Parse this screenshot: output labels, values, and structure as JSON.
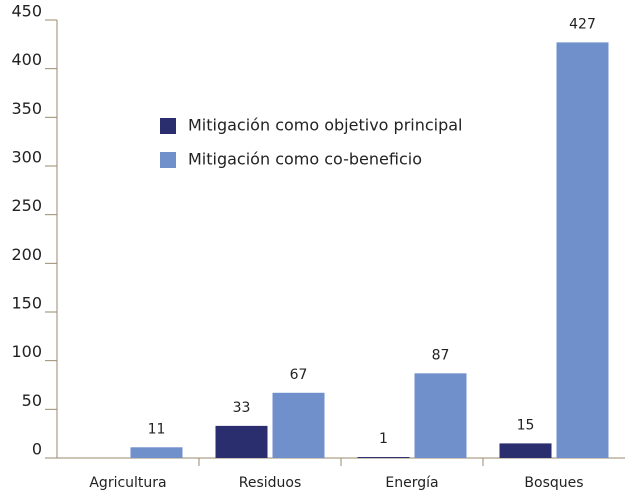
{
  "chart_data": {
    "type": "bar",
    "categories": [
      "Agricultura",
      "Residuos",
      "Energía",
      "Bosques"
    ],
    "series": [
      {
        "name": "Mitigación como objetivo principal",
        "color": "#2a2d6e",
        "values": [
          null,
          33,
          1,
          15
        ]
      },
      {
        "name": "Mitigación como co-beneficio",
        "color": "#7090cc",
        "values": [
          11,
          67,
          87,
          427
        ]
      }
    ],
    "ylim": [
      0,
      450
    ],
    "yticks": [
      0,
      50,
      100,
      150,
      200,
      250,
      300,
      350,
      400,
      450
    ],
    "grid": false,
    "legend": "upper left"
  }
}
